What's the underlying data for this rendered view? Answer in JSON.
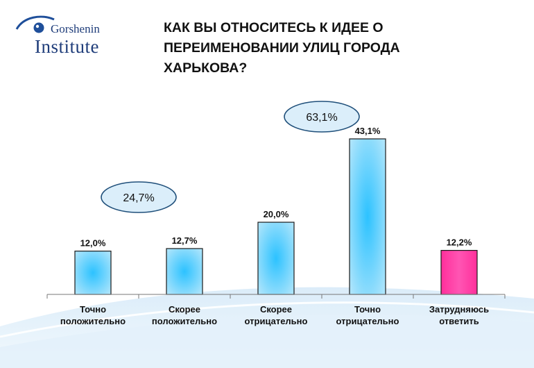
{
  "brand": {
    "name_top": "Gorshenin",
    "name_bottom": "Institute"
  },
  "colors": {
    "bar": "#3fc3f5",
    "bar_highlight": "#ff3fa6",
    "bubble_fill": "#dbeefa",
    "bubble_stroke": "#1f4f7a"
  },
  "chart_data": {
    "type": "bar",
    "title": "КАК ВЫ ОТНОСИТЕСЬ К ИДЕЕ О ПЕРЕИМЕНОВАНИИ УЛИЦ ГОРОДА ХАРЬКОВА?",
    "title_lines": [
      "КАК ВЫ ОТНОСИТЕСЬ К ИДЕЕ О",
      "ПЕРЕИМЕНОВАНИИ УЛИЦ ГОРОДА",
      "ХАРЬКОВА?"
    ],
    "categories": [
      [
        "Точно",
        "положительно"
      ],
      [
        "Скорее",
        "положительно"
      ],
      [
        "Скорее",
        "отрицательно"
      ],
      [
        "Точно",
        "отрицательно"
      ],
      [
        "Затрудняюсь",
        "ответить"
      ]
    ],
    "values": [
      12.0,
      12.7,
      20.0,
      43.1,
      12.2
    ],
    "value_labels": [
      "12,0%",
      "12,7%",
      "20,0%",
      "43,1%",
      "12,2%"
    ],
    "highlight_index": 4,
    "annotations": [
      {
        "text": "24,7%",
        "categories": [
          0,
          1
        ]
      },
      {
        "text": "63,1%",
        "categories": [
          2,
          3
        ]
      }
    ],
    "ylim": [
      0,
      50
    ],
    "grid": false,
    "legend": "none"
  }
}
